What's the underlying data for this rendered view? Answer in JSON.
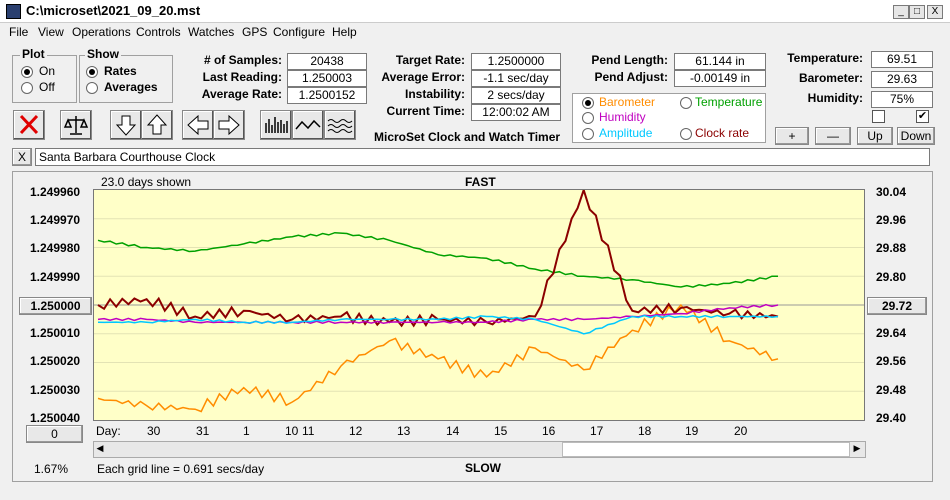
{
  "window": {
    "title": "C:\\microset\\2021_09_20.mst",
    "minimize": "_",
    "maximize": "□",
    "close": "X"
  },
  "menu": [
    "File",
    "View",
    "Operations",
    "Controls",
    "Watches",
    "GPS",
    "Configure",
    "Help"
  ],
  "plot_group": {
    "title": "Plot",
    "options": [
      "On",
      "Off"
    ],
    "selected": "On"
  },
  "show_group": {
    "title": "Show",
    "options": [
      "Rates",
      "Averages"
    ],
    "selected": "Rates"
  },
  "stats": {
    "samples_label": "# of Samples:",
    "samples": "20438",
    "last_reading_label": "Last Reading:",
    "last_reading": "1.250003",
    "average_rate_label": "Average Rate:",
    "average_rate": "1.2500152",
    "target_rate_label": "Target Rate:",
    "target_rate": "1.2500000",
    "average_error_label": "Average Error:",
    "average_error": "-1.1 sec/day",
    "instability_label": "Instability:",
    "instability": "2 secs/day",
    "current_time_label": "Current Time:",
    "current_time": "12:00:02 AM",
    "pend_length_label": "Pend Length:",
    "pend_length": "61.144 in",
    "pend_adjust_label": "Pend Adjust:",
    "pend_adjust": "-0.00149 in",
    "temperature_label": "Temperature:",
    "temperature": "69.51",
    "barometer_label": "Barometer:",
    "barometer": "29.63",
    "humidity_label": "Humidity:",
    "humidity": "75%"
  },
  "heading": "MicroSet Clock and Watch Timer",
  "sensor_options": [
    {
      "label": "Barometer",
      "color": "#ff8c00",
      "selected": true
    },
    {
      "label": "Temperature",
      "color": "#00a000",
      "selected": false
    },
    {
      "label": "Humidity",
      "color": "#c000c0",
      "selected": false
    },
    {
      "label": "Clock rate",
      "color": "#8b0000",
      "selected": false
    },
    {
      "label": "Amplitude",
      "color": "#00c8ff",
      "selected": false
    }
  ],
  "right_buttons": {
    "plus": "+",
    "minus": "—",
    "up": "Up",
    "down": "Down"
  },
  "checkboxes": {
    "left": "",
    "right": "✔"
  },
  "clock_name": "Santa Barbara Courthouse Clock",
  "clear_name_button": "X",
  "chart": {
    "days_shown": "23.0 days shown",
    "top_label": "FAST",
    "bottom_label": "SLOW",
    "left_ticks": [
      "1.249960",
      "1.249970",
      "1.249980",
      "1.249990",
      "1.250000",
      "1.250010",
      "1.250020",
      "1.250030",
      "1.250040"
    ],
    "right_ticks": [
      "30.04",
      "29.96",
      "29.88",
      "29.80",
      "29.72",
      "29.64",
      "29.56",
      "29.48",
      "29.40"
    ],
    "left_center_value": "1.250000",
    "right_center_value": "29.72",
    "day_label": "Day:",
    "days": [
      "30",
      "31",
      "1",
      "10",
      "11",
      "12",
      "13",
      "14",
      "15",
      "16",
      "17",
      "18",
      "19",
      "20"
    ],
    "percent": "1.67%",
    "grid_note": "Each grid line = 0.691 secs/day",
    "zero_button": "0"
  },
  "chart_data": {
    "type": "line",
    "x_unit": "day",
    "x_ticks": [
      "30",
      "31",
      "1",
      "10",
      "11",
      "12",
      "13",
      "14",
      "15",
      "16",
      "17",
      "18",
      "19",
      "20"
    ],
    "y_left_range": [
      1.25004,
      1.24996
    ],
    "y_right_range": [
      29.4,
      30.04
    ],
    "series": [
      {
        "name": "Temperature",
        "color": "#00a000",
        "values": [
          29.9,
          29.88,
          29.87,
          29.89,
          29.91,
          29.92,
          29.9,
          29.86,
          29.85,
          29.82,
          29.8,
          29.79,
          29.77,
          29.78,
          29.8
        ]
      },
      {
        "name": "Barometer",
        "color": "#ff8c00",
        "values": [
          29.46,
          29.44,
          29.43,
          29.49,
          29.45,
          29.55,
          29.62,
          29.57,
          29.52,
          29.6,
          29.54,
          29.65,
          29.72,
          29.62,
          29.57
        ]
      },
      {
        "name": "Clock rate",
        "color": "#8b0000",
        "values": [
          1.25,
          1.249998,
          1.250004,
          1.250002,
          1.250005,
          1.250004,
          1.250006,
          1.250005,
          1.250006,
          1.250004,
          1.24996,
          1.250002,
          1.250001,
          1.250003,
          1.250004
        ]
      },
      {
        "name": "Humidity",
        "color": "#c000c0",
        "values": [
          1.250005,
          1.250005,
          1.250006,
          1.250006,
          1.250006,
          1.250006,
          1.250006,
          1.250006,
          1.250006,
          1.250005,
          1.250005,
          1.250004,
          1.250003,
          1.250001,
          1.25
        ]
      },
      {
        "name": "Amplitude",
        "color": "#00c8ff",
        "values": [
          1.250006,
          1.250006,
          1.250005,
          1.250006,
          1.250006,
          1.250005,
          1.250005,
          1.250005,
          1.250004,
          1.250005,
          1.25001,
          1.250004,
          1.250004,
          1.250004,
          1.250004
        ]
      }
    ]
  }
}
